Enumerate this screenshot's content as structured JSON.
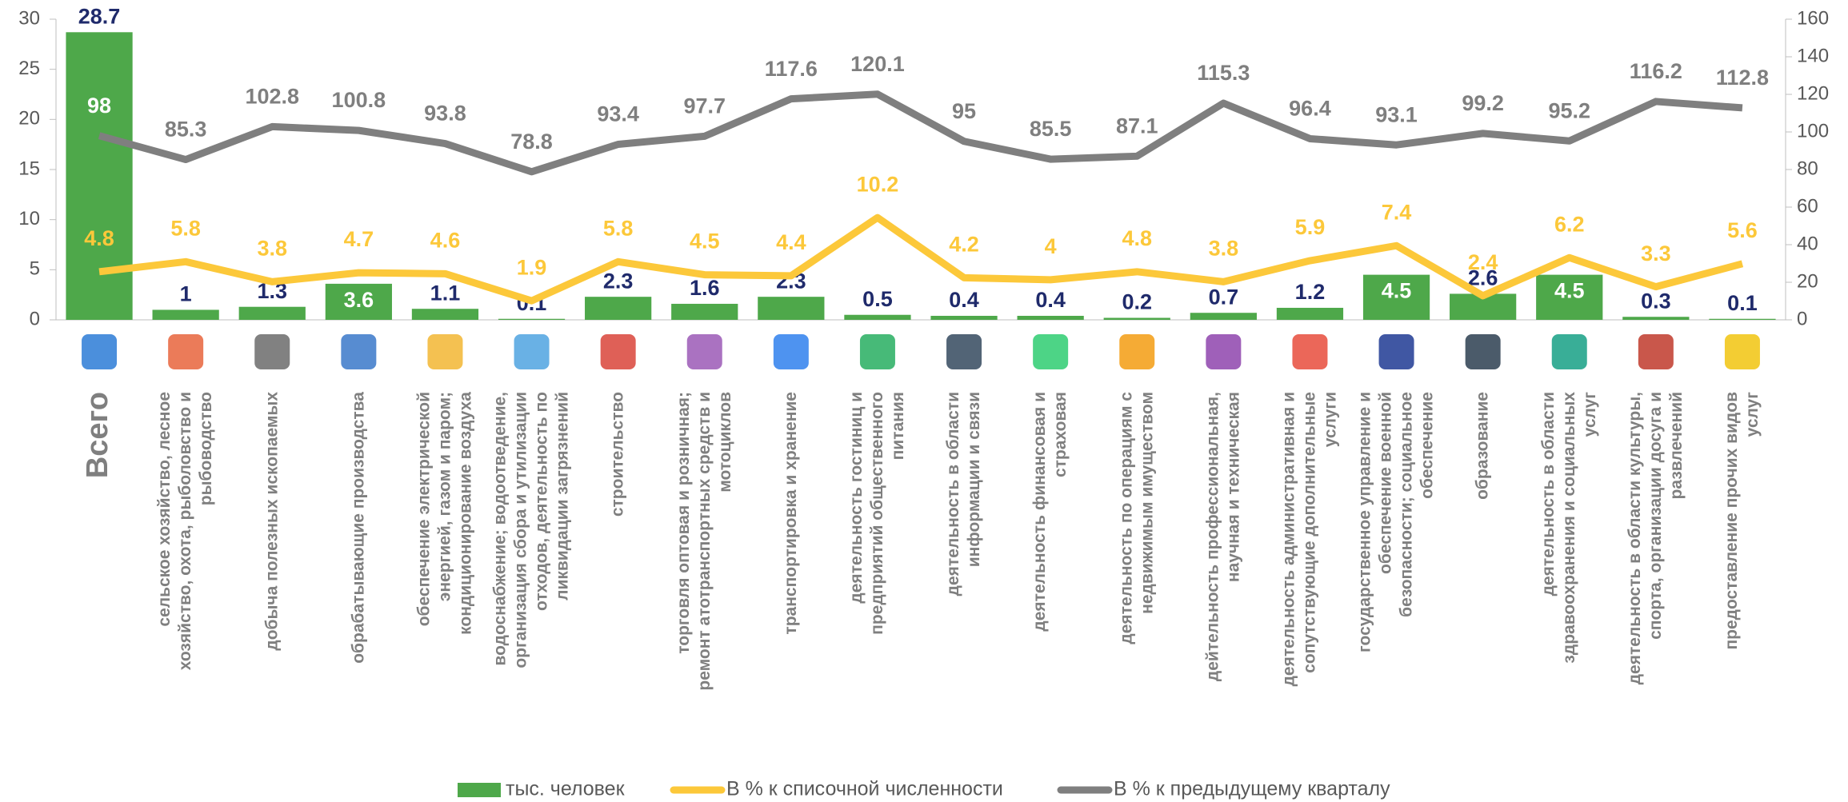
{
  "chart_data": {
    "type": "bar-line",
    "categories": [
      "Всего",
      "сельское хозяйство, лесное хозяйство, охота, рыболовство и рыбоводство",
      "добыча полезных ископаемых",
      "обрабатывающие производства",
      "обеспечение электрической энергией, газом и паром; кондиционирование воздуха",
      "водоснабжение; водоотведение, организация сбора и утилизации отходов, деятельность по ликвидации загрязнений",
      "строительство",
      "торговля оптовая и розничная; ремонт атотранспортных средств и мотоциклов",
      "транспортировка и хранение",
      "деятельность гостиниц и предприятий общественного питания",
      "деятельность в области информации и связи",
      "деятельность финансовая и страховая",
      "деятельность по операциям с недвижимым имуществом",
      "дейтельность профессиональная, научная и техническая",
      "деятельность административная и сопутствующие дополнительные услуги",
      "государственное управление и обеспечение военной безопасности; социальное обеспечение",
      "образование",
      "деятельность в области здравоохранения и социальных услуг",
      "деятельность в области культуры, спорта, организации досуга и развлечений",
      "предоставление прочих видов услуг"
    ],
    "series": [
      {
        "name": "тыс. человек",
        "type": "bar",
        "color": "#4ea84a",
        "values": [
          28.7,
          1.0,
          1.3,
          3.6,
          1.1,
          0.1,
          2.3,
          1.6,
          2.3,
          0.5,
          0.4,
          0.4,
          0.2,
          0.7,
          1.2,
          4.5,
          2.6,
          4.5,
          0.3,
          0.1
        ]
      },
      {
        "name": "В % к списочной численности",
        "type": "line",
        "color": "#fcc83a",
        "values": [
          4.8,
          5.8,
          3.8,
          4.7,
          4.6,
          1.9,
          5.8,
          4.5,
          4.4,
          10.2,
          4.2,
          4.0,
          4.8,
          3.8,
          5.9,
          7.4,
          2.4,
          6.2,
          3.3,
          5.6
        ]
      },
      {
        "name": "В % к предыдущему кварталу",
        "type": "line",
        "color": "#7f7f7f",
        "axis": "y2",
        "values": [
          98.0,
          85.3,
          102.8,
          100.8,
          93.8,
          78.8,
          93.4,
          97.7,
          117.6,
          120.1,
          95.0,
          85.5,
          87.1,
          115.3,
          96.4,
          93.1,
          99.2,
          95.2,
          116.2,
          112.8
        ]
      }
    ],
    "ylim": [
      0,
      30
    ],
    "yticks": [
      0,
      5,
      10,
      15,
      20,
      25,
      30
    ],
    "y2lim": [
      0,
      160
    ],
    "y2ticks": [
      0,
      20,
      40,
      60,
      80,
      100,
      120,
      140,
      160
    ],
    "legend": "bottom"
  }
}
